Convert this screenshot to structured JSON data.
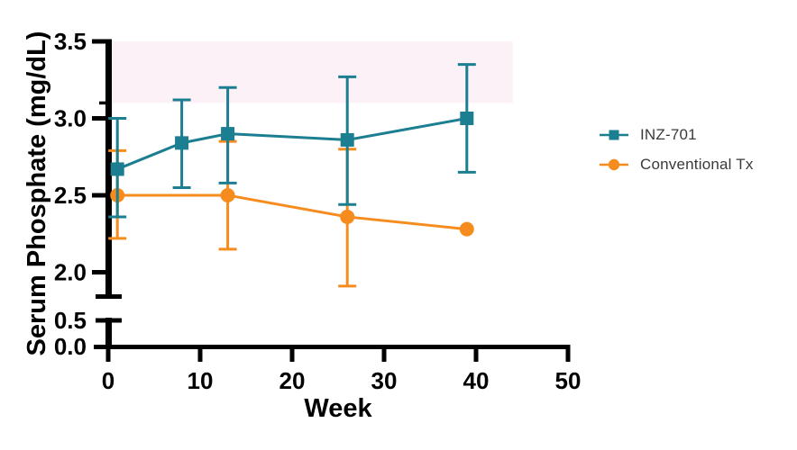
{
  "chart_data": {
    "type": "line",
    "title": "",
    "xlabel": "Week",
    "ylabel": "Serum Phosphate (mg/dL)",
    "x_axis": {
      "range": [
        0,
        50
      ],
      "ticks": [
        {
          "v": 0,
          "label": "0"
        },
        {
          "v": 10,
          "label": "10"
        },
        {
          "v": 20,
          "label": "20"
        },
        {
          "v": 30,
          "label": "30"
        },
        {
          "v": 40,
          "label": "40"
        },
        {
          "v": 50,
          "label": "50"
        }
      ]
    },
    "y_axis": {
      "upper_range": [
        2.0,
        3.5
      ],
      "lower_range": [
        0.0,
        0.5
      ],
      "break_between": [
        0.5,
        2.0
      ],
      "upper_ticks": [
        {
          "v": 3.5,
          "label": "3.5"
        },
        {
          "v": 3.0,
          "label": "3.0"
        },
        {
          "v": 2.5,
          "label": "2.5"
        },
        {
          "v": 2.0,
          "label": "2.0"
        }
      ],
      "lower_ticks": [
        {
          "v": 0.5,
          "label": "0.5"
        },
        {
          "v": 0.0,
          "label": "0.0"
        }
      ],
      "minor_tick": 3.1
    },
    "reference_band": {
      "y_from": 3.1,
      "y_to": 3.5,
      "x_from": 0,
      "x_to": 44,
      "color": "#FBF1F7"
    },
    "series": [
      {
        "name": "INZ-701",
        "color": "#1B7E91",
        "marker": "square",
        "x": [
          1,
          8,
          13,
          26,
          39
        ],
        "y": [
          2.67,
          2.84,
          2.9,
          2.86,
          3.0
        ],
        "err_low": [
          2.36,
          2.55,
          2.58,
          2.44,
          2.65
        ],
        "err_high": [
          3.0,
          3.12,
          3.2,
          3.27,
          3.35
        ]
      },
      {
        "name": "Conventional Tx",
        "color": "#F78C1E",
        "marker": "circle",
        "x": [
          1,
          13,
          26,
          39
        ],
        "y": [
          2.5,
          2.5,
          2.36,
          2.28
        ],
        "err_low": [
          2.22,
          2.15,
          1.91,
          null
        ],
        "err_high": [
          2.79,
          2.85,
          2.8,
          null
        ]
      }
    ],
    "legend": {
      "position": "right",
      "entries": [
        "INZ-701",
        "Conventional Tx"
      ]
    },
    "grid": "off",
    "axis_color": "#000000"
  }
}
